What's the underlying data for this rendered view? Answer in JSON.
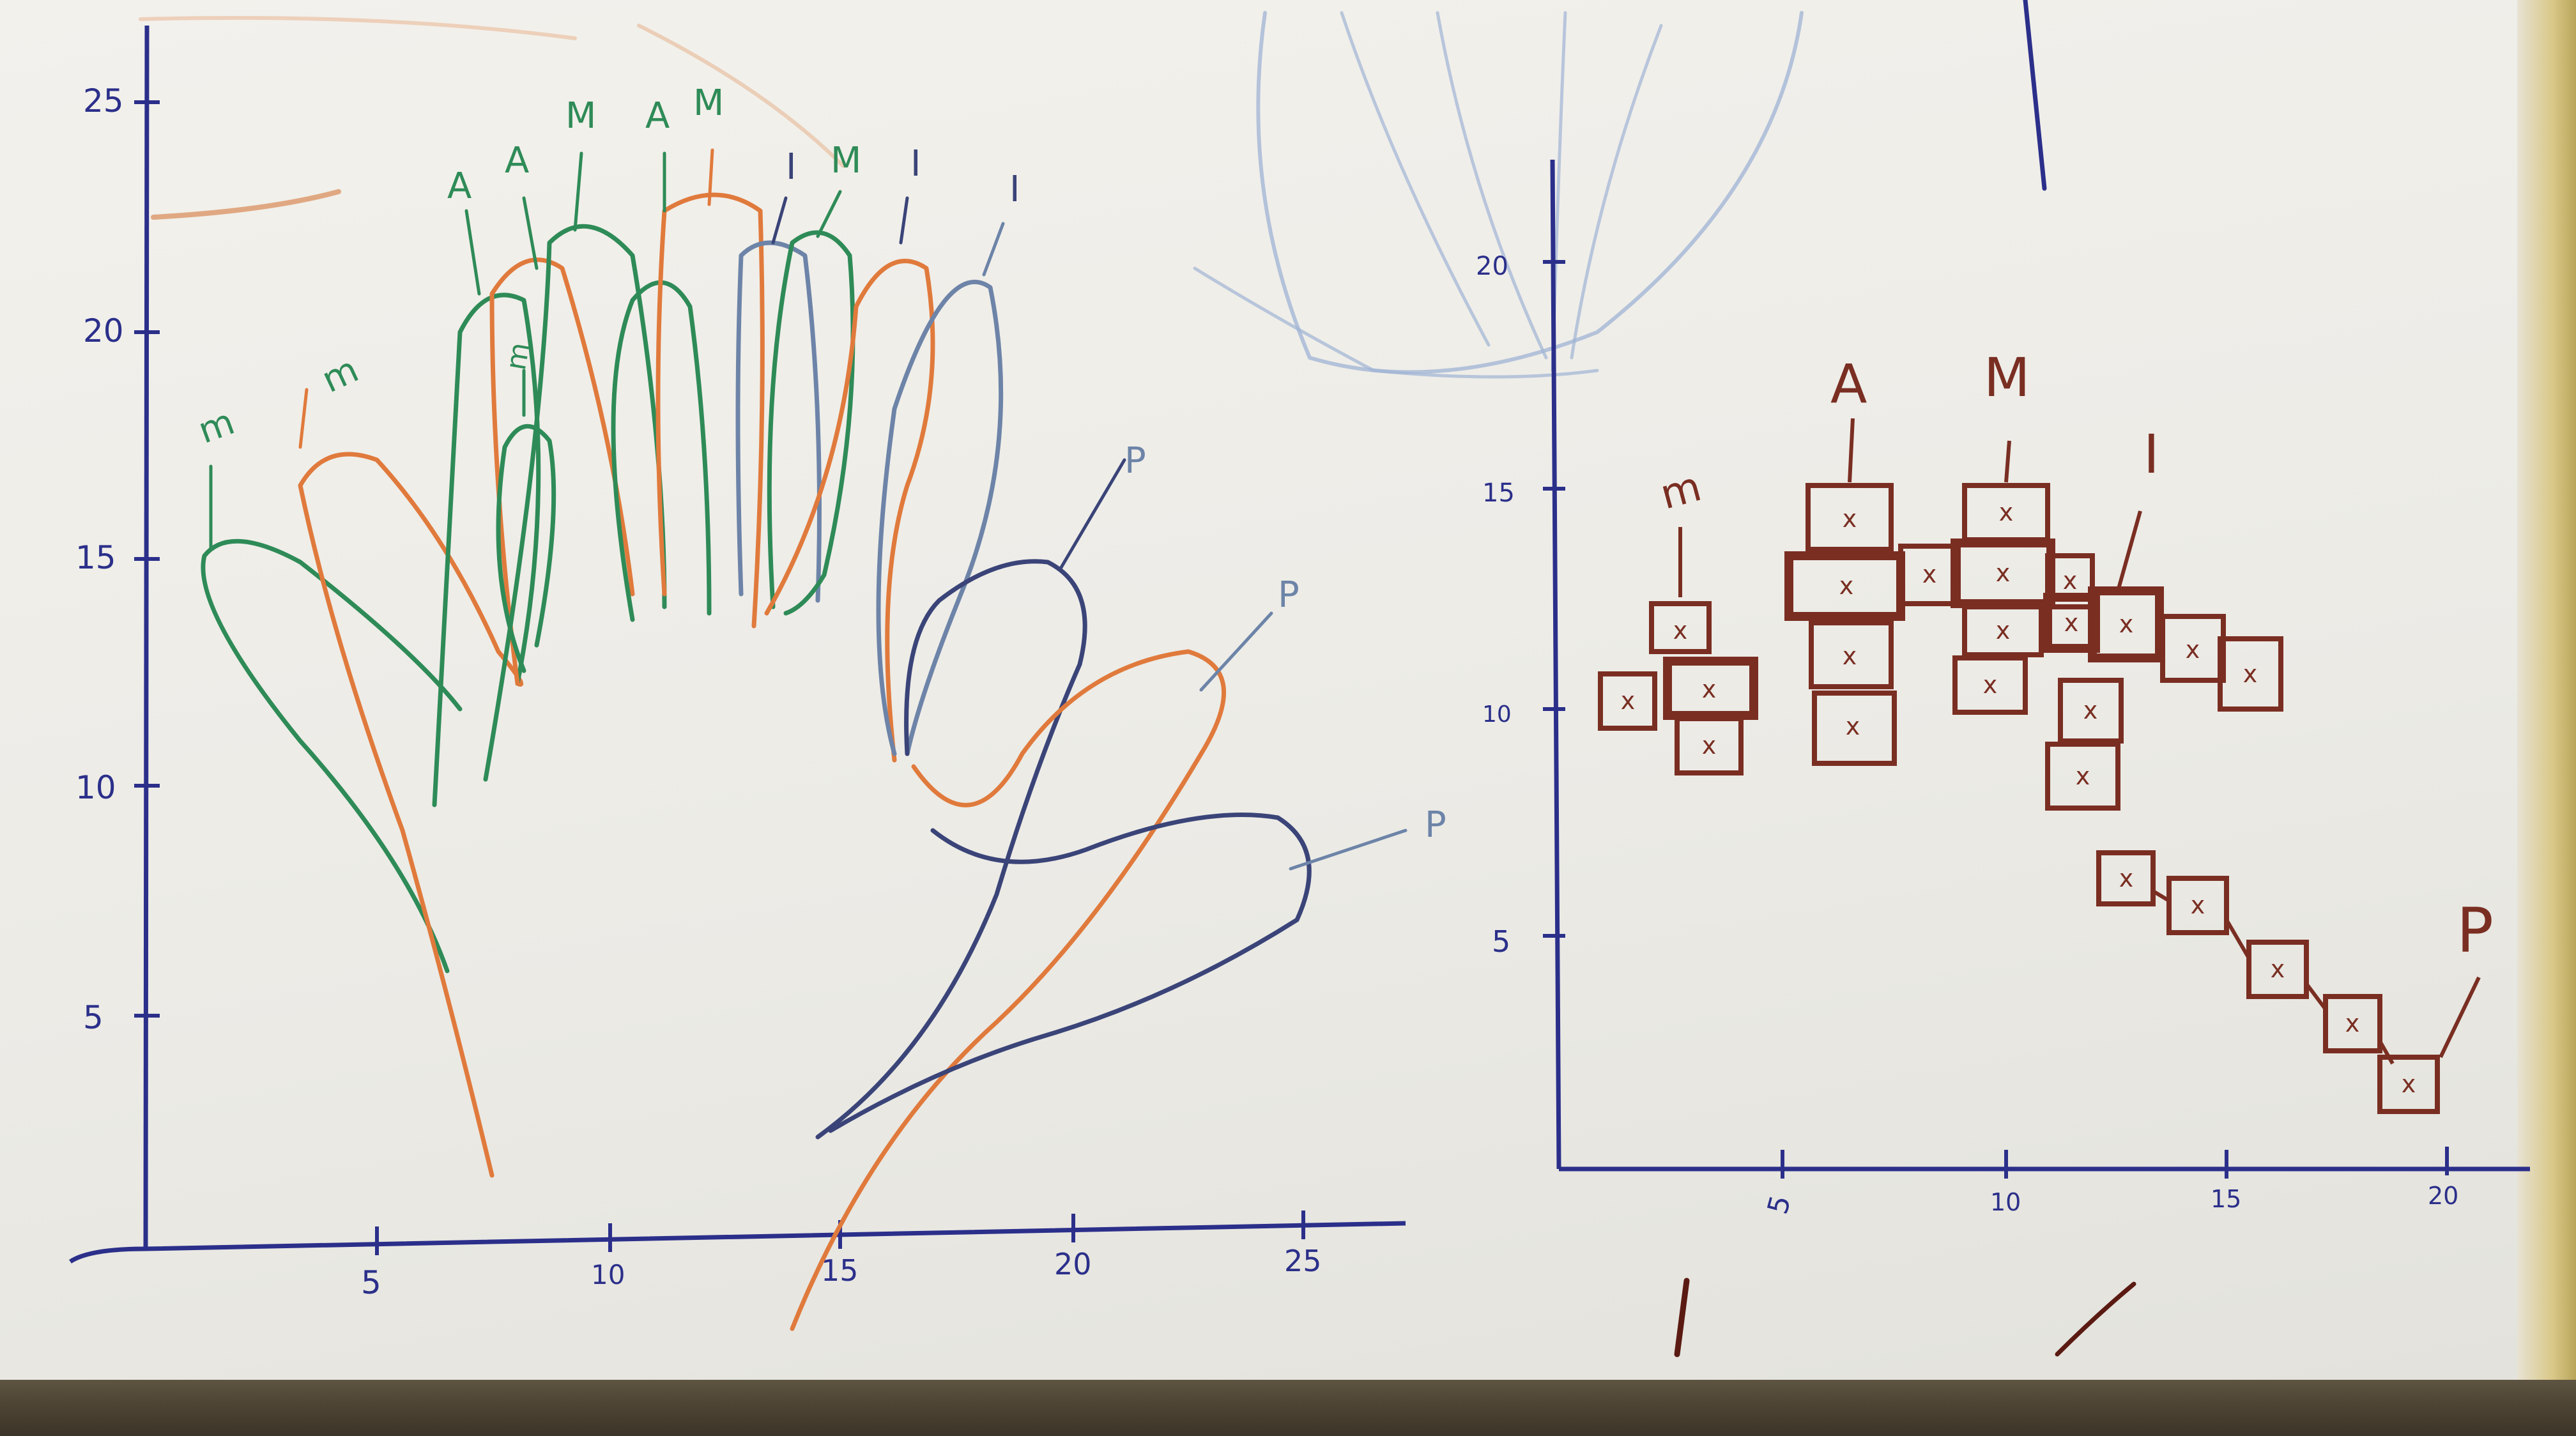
{
  "left_plot": {
    "y_ticks": [
      "5",
      "10",
      "15",
      "20",
      "25"
    ],
    "x_ticks": [
      "5",
      "10",
      "15",
      "20",
      "25"
    ],
    "finger_labels": [
      "m",
      "m",
      "m",
      "A",
      "A",
      "M",
      "A",
      "M",
      "I",
      "M",
      "I",
      "I",
      "P",
      "P",
      "P"
    ]
  },
  "right_plot": {
    "y_ticks": [
      "5",
      "10",
      "15",
      "20"
    ],
    "x_ticks": [
      "5",
      "10",
      "15",
      "20"
    ],
    "finger_labels": [
      "m",
      "A",
      "M",
      "I",
      "P"
    ],
    "cell_mark": "x"
  },
  "colors": {
    "axis": "#2b2f8a",
    "green": "#2e8b57",
    "orange": "#e07a3c",
    "blue_gray": "#6d84a8",
    "navy": "#3a4478",
    "brown": "#7a2e22"
  }
}
